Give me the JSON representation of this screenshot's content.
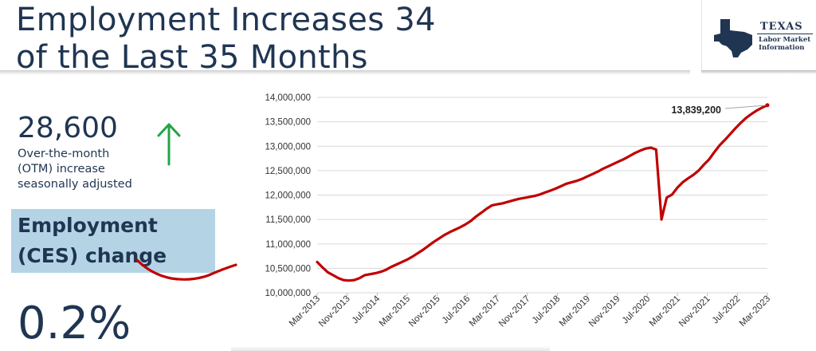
{
  "title": {
    "line1": "Employment Increases 34",
    "line2": "of the Last 35 Months"
  },
  "logo": {
    "brand": "TEXAS",
    "line1": "Labor Market",
    "line2": "Information",
    "colors": {
      "navy": "#1f3552"
    }
  },
  "stats": {
    "otm_value": "28,600",
    "otm_line1": "Over-the-month",
    "otm_line2": "(OTM) increase",
    "otm_line3": "seasonally adjusted",
    "arrow_icon": "up-arrow-icon",
    "arrow_color": "#22a447",
    "ces_line1": "Employment",
    "ces_line2": "(CES) change",
    "ces_box_color": "#b4d4e5",
    "pct": "0.2%"
  },
  "chart_data": {
    "type": "line",
    "title": "",
    "xlabel": "",
    "ylabel": "",
    "ylim": [
      10000000,
      14000000
    ],
    "yticks": [
      10000000,
      10500000,
      11000000,
      11500000,
      12000000,
      12500000,
      13000000,
      13500000,
      14000000
    ],
    "ytick_labels": [
      "10,000,000",
      "10,500,000",
      "11,000,000",
      "11,500,000",
      "12,000,000",
      "12,500,000",
      "13,000,000",
      "13,500,000",
      "14,000,000"
    ],
    "xtick_labels": [
      "Mar-2013",
      "Nov-2013",
      "Jul-2014",
      "Mar-2015",
      "Nov-2015",
      "Jul-2016",
      "Mar-2017",
      "Nov-2017",
      "Jul-2018",
      "Mar-2019",
      "Nov-2019",
      "Jul-2020",
      "Mar-2021",
      "Nov-2021",
      "Jul-2022",
      "Mar-2023"
    ],
    "grid": true,
    "line_color": "#c00000",
    "annotation": {
      "text": "13,839,200",
      "x": "Mar-2023",
      "y": 13839200
    },
    "series": [
      {
        "values": [
          [
            0,
            10630000
          ],
          [
            1,
            10520000
          ],
          [
            2,
            10420000
          ],
          [
            3,
            10360000
          ],
          [
            4,
            10300000
          ],
          [
            5,
            10260000
          ],
          [
            6,
            10250000
          ],
          [
            7,
            10260000
          ],
          [
            8,
            10300000
          ],
          [
            9,
            10360000
          ],
          [
            10,
            10380000
          ],
          [
            11,
            10400000
          ],
          [
            12,
            10430000
          ],
          [
            13,
            10470000
          ],
          [
            14,
            10530000
          ],
          [
            15,
            10580000
          ],
          [
            16,
            10630000
          ],
          [
            17,
            10680000
          ],
          [
            18,
            10740000
          ],
          [
            19,
            10810000
          ],
          [
            20,
            10880000
          ],
          [
            21,
            10960000
          ],
          [
            22,
            11040000
          ],
          [
            23,
            11110000
          ],
          [
            24,
            11180000
          ],
          [
            25,
            11240000
          ],
          [
            26,
            11290000
          ],
          [
            27,
            11340000
          ],
          [
            28,
            11400000
          ],
          [
            29,
            11470000
          ],
          [
            30,
            11560000
          ],
          [
            31,
            11640000
          ],
          [
            32,
            11720000
          ],
          [
            33,
            11790000
          ],
          [
            34,
            11810000
          ],
          [
            35,
            11830000
          ],
          [
            36,
            11860000
          ],
          [
            37,
            11890000
          ],
          [
            38,
            11920000
          ],
          [
            39,
            11940000
          ],
          [
            40,
            11960000
          ],
          [
            41,
            11980000
          ],
          [
            42,
            12010000
          ],
          [
            43,
            12050000
          ],
          [
            44,
            12090000
          ],
          [
            45,
            12130000
          ],
          [
            46,
            12180000
          ],
          [
            47,
            12230000
          ],
          [
            48,
            12260000
          ],
          [
            49,
            12290000
          ],
          [
            50,
            12330000
          ],
          [
            51,
            12380000
          ],
          [
            52,
            12430000
          ],
          [
            53,
            12480000
          ],
          [
            54,
            12540000
          ],
          [
            55,
            12590000
          ],
          [
            56,
            12640000
          ],
          [
            57,
            12690000
          ],
          [
            58,
            12740000
          ],
          [
            59,
            12800000
          ],
          [
            60,
            12860000
          ],
          [
            61,
            12910000
          ],
          [
            62,
            12950000
          ],
          [
            63,
            12970000
          ],
          [
            64,
            12930000
          ],
          [
            65,
            11500000
          ],
          [
            66,
            11950000
          ],
          [
            67,
            12010000
          ],
          [
            68,
            12150000
          ],
          [
            69,
            12260000
          ],
          [
            70,
            12340000
          ],
          [
            71,
            12410000
          ],
          [
            72,
            12500000
          ],
          [
            73,
            12620000
          ],
          [
            74,
            12730000
          ],
          [
            75,
            12880000
          ],
          [
            76,
            13020000
          ],
          [
            77,
            13130000
          ],
          [
            78,
            13250000
          ],
          [
            79,
            13370000
          ],
          [
            80,
            13480000
          ],
          [
            81,
            13580000
          ],
          [
            82,
            13660000
          ],
          [
            83,
            13730000
          ],
          [
            84,
            13790000
          ],
          [
            85,
            13839200
          ]
        ]
      }
    ]
  }
}
